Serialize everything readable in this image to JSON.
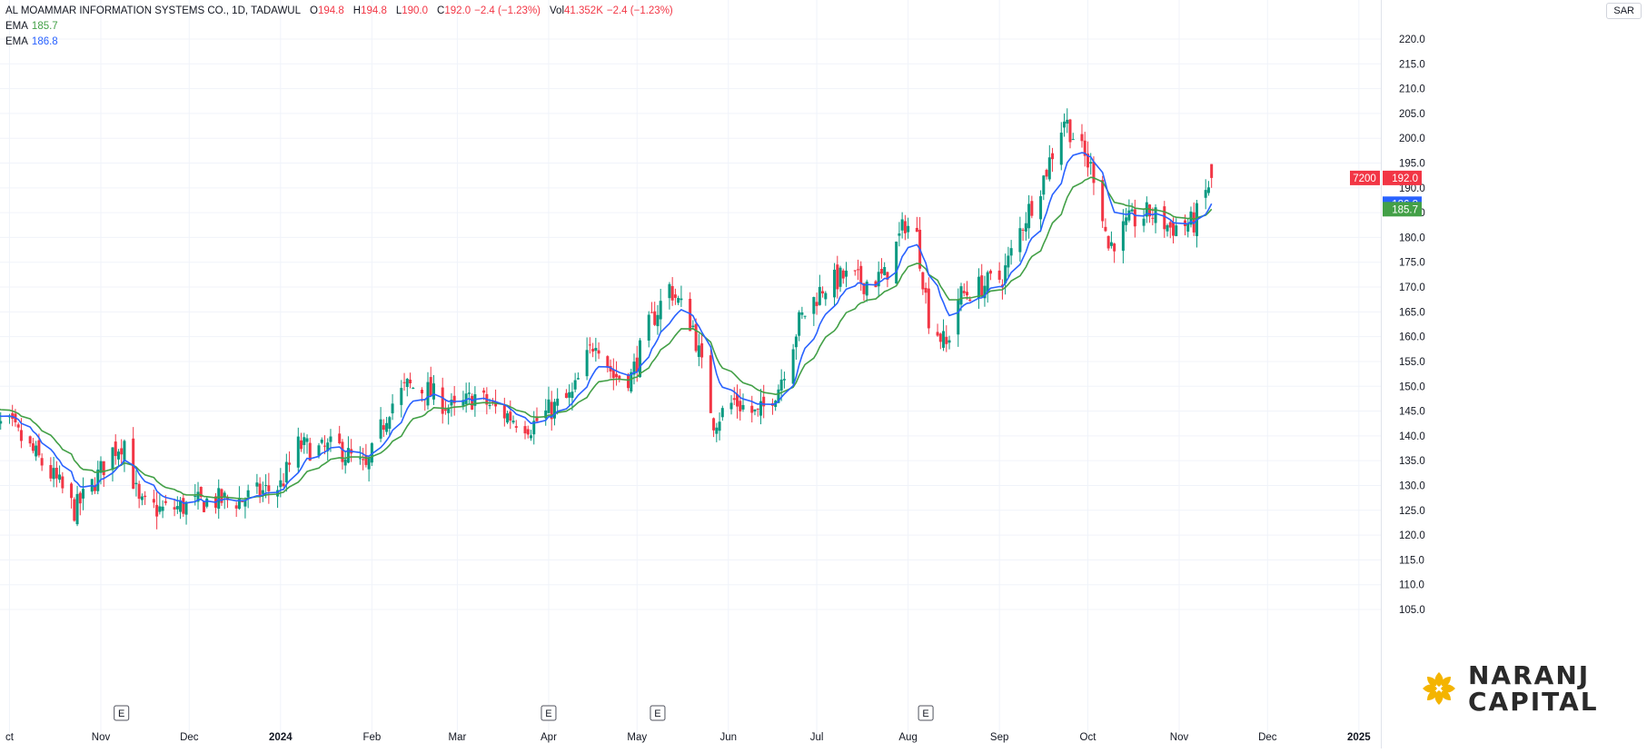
{
  "legend": {
    "symbol": "AL MOAMMAR INFORMATION SYSTEMS CO., 1D, TADAWUL",
    "o_label": "O",
    "o": "194.8",
    "h_label": "H",
    "h": "194.8",
    "l_label": "L",
    "l": "190.0",
    "c_label": "C",
    "c": "192.0",
    "chg": "−2.4 (−1.23%)",
    "vol_label": "Vol",
    "vol": "41.352K",
    "vol_chg": "−2.4 (−1.23%)",
    "ema1_label": "EMA",
    "ema1": "185.7",
    "ema2_label": "EMA",
    "ema2": "186.8"
  },
  "currency": "SAR",
  "price_tags": {
    "countdown": "7200",
    "last": "192.0",
    "ema_blue": "186.8",
    "ema_green": "185.7"
  },
  "earnings_marker": "E",
  "logo": {
    "line1": "NARANJ",
    "line2": "CAPITAL"
  },
  "colors": {
    "up": "#089981",
    "down": "#f23645",
    "ema_fast": "#2962ff",
    "ema_slow": "#43a047",
    "grid": "#f0f3fa",
    "axis_text": "#131722"
  },
  "chart_data": {
    "type": "candlestick",
    "ylim": [
      100,
      225
    ],
    "yticks": [
      105,
      110,
      115,
      120,
      125,
      130,
      135,
      140,
      145,
      150,
      155,
      160,
      165,
      170,
      175,
      180,
      185,
      190,
      195,
      200,
      205,
      210,
      215,
      220
    ],
    "x_labels": [
      {
        "label": "ct",
        "date": "2023-10-01"
      },
      {
        "label": "Nov",
        "date": "2023-11-01"
      },
      {
        "label": "Dec",
        "date": "2023-12-01"
      },
      {
        "label": "2024",
        "date": "2024-01-01"
      },
      {
        "label": "Feb",
        "date": "2024-02-01"
      },
      {
        "label": "Mar",
        "date": "2024-03-01"
      },
      {
        "label": "Apr",
        "date": "2024-04-01"
      },
      {
        "label": "May",
        "date": "2024-05-01"
      },
      {
        "label": "Jun",
        "date": "2024-06-01"
      },
      {
        "label": "Jul",
        "date": "2024-07-01"
      },
      {
        "label": "Aug",
        "date": "2024-08-01"
      },
      {
        "label": "Sep",
        "date": "2024-09-01"
      },
      {
        "label": "Oct",
        "date": "2024-10-01"
      },
      {
        "label": "Nov",
        "date": "2024-11-01"
      },
      {
        "label": "Dec",
        "date": "2024-12-01"
      },
      {
        "label": "2025",
        "date": "2025-01-01"
      }
    ],
    "earnings_dates": [
      "2023-11-08",
      "2024-04-01",
      "2024-05-08",
      "2024-08-07"
    ],
    "close_anchors": [
      [
        "2023-10-01",
        142
      ],
      [
        "2023-10-10",
        136
      ],
      [
        "2023-10-18",
        130
      ],
      [
        "2023-10-23",
        125
      ],
      [
        "2023-10-28",
        129
      ],
      [
        "2023-11-05",
        137
      ],
      [
        "2023-11-09",
        139
      ],
      [
        "2023-11-14",
        126
      ],
      [
        "2023-11-22",
        125
      ],
      [
        "2023-12-01",
        126
      ],
      [
        "2023-12-08",
        127
      ],
      [
        "2023-12-18",
        127
      ],
      [
        "2024-01-01",
        130
      ],
      [
        "2024-01-07",
        138
      ],
      [
        "2024-01-15",
        137
      ],
      [
        "2024-01-20",
        138
      ],
      [
        "2024-01-30",
        133
      ],
      [
        "2024-02-07",
        146
      ],
      [
        "2024-02-13",
        150
      ],
      [
        "2024-02-20",
        149
      ],
      [
        "2024-02-29",
        145
      ],
      [
        "2024-03-07",
        148
      ],
      [
        "2024-03-15",
        145
      ],
      [
        "2024-03-26",
        142
      ],
      [
        "2024-04-01",
        145
      ],
      [
        "2024-04-09",
        148
      ],
      [
        "2024-04-17",
        160
      ],
      [
        "2024-04-23",
        152
      ],
      [
        "2024-04-29",
        152
      ],
      [
        "2024-05-05",
        162
      ],
      [
        "2024-05-12",
        170
      ],
      [
        "2024-05-20",
        162
      ],
      [
        "2024-05-27",
        143
      ],
      [
        "2024-06-03",
        147
      ],
      [
        "2024-06-11",
        144
      ],
      [
        "2024-06-18",
        150
      ],
      [
        "2024-06-25",
        163
      ],
      [
        "2024-07-03",
        170
      ],
      [
        "2024-07-10",
        172
      ],
      [
        "2024-07-17",
        171
      ],
      [
        "2024-07-24",
        172
      ],
      [
        "2024-07-31",
        183
      ],
      [
        "2024-08-04",
        180
      ],
      [
        "2024-08-08",
        164
      ],
      [
        "2024-08-14",
        158
      ],
      [
        "2024-08-18",
        168
      ],
      [
        "2024-08-25",
        170
      ],
      [
        "2024-09-02",
        172
      ],
      [
        "2024-09-09",
        183
      ],
      [
        "2024-09-16",
        192
      ],
      [
        "2024-09-23",
        204
      ],
      [
        "2024-09-30",
        196
      ],
      [
        "2024-10-04",
        192
      ],
      [
        "2024-10-08",
        178
      ],
      [
        "2024-10-15",
        183
      ],
      [
        "2024-10-22",
        185
      ],
      [
        "2024-10-29",
        182
      ],
      [
        "2024-11-06",
        183
      ],
      [
        "2024-11-12",
        192
      ]
    ],
    "ohlc_note": "Last bar O 194.8 H 194.8 L 190.0 C 192.0",
    "ema_fast_last": 186.8,
    "ema_slow_last": 185.7,
    "grid": true,
    "legend_position": "top-left"
  }
}
